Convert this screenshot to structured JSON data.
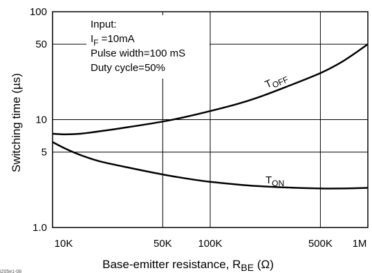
{
  "chart_data": {
    "type": "line",
    "x_scale": "log",
    "y_scale": "log",
    "xlim": [
      10000,
      1000000
    ],
    "ylim": [
      1,
      100
    ],
    "grid": true,
    "xlabel": "Base-emitter resistance, RBE (Ω)",
    "xlabel_parts": {
      "main": "Base-emitter resistance, R",
      "sub": "BE",
      "tail": " (Ω)"
    },
    "ylabel": "Switching time (µs)",
    "x_ticks": [
      {
        "value": 10000,
        "label": "10K"
      },
      {
        "value": 50000,
        "label": "50K"
      },
      {
        "value": 100000,
        "label": "100K"
      },
      {
        "value": 500000,
        "label": "500K"
      },
      {
        "value": 1000000,
        "label": "1M"
      }
    ],
    "y_ticks": [
      {
        "value": 1,
        "label": "1.0"
      },
      {
        "value": 5,
        "label": "5"
      },
      {
        "value": 10,
        "label": "10"
      },
      {
        "value": 50,
        "label": "50"
      },
      {
        "value": 100,
        "label": "100"
      }
    ],
    "annotation": {
      "line1": "Input:",
      "line2_main": "I",
      "line2_sub": "F",
      "line2_tail": " =10mA",
      "line3": "Pulse width=100 mS",
      "line4": "Duty cycle=50%"
    },
    "series": [
      {
        "name": "TOFF",
        "label_main": "T",
        "label_sub": "OFF",
        "x": [
          10000,
          12000,
          15000,
          20000,
          30000,
          50000,
          70000,
          100000,
          150000,
          200000,
          300000,
          500000,
          700000,
          1000000
        ],
        "y": [
          7.4,
          7.3,
          7.4,
          7.8,
          8.5,
          9.6,
          10.6,
          12.0,
          14.0,
          16.0,
          20.0,
          27.0,
          35.0,
          50.0
        ]
      },
      {
        "name": "TON",
        "label_main": "T",
        "label_sub": "ON",
        "x": [
          10000,
          12000,
          15000,
          20000,
          30000,
          50000,
          70000,
          100000,
          150000,
          200000,
          300000,
          500000,
          700000,
          1000000
        ],
        "y": [
          6.2,
          5.4,
          4.7,
          4.1,
          3.6,
          3.1,
          2.85,
          2.65,
          2.5,
          2.42,
          2.35,
          2.3,
          2.3,
          2.33
        ]
      }
    ],
    "figure_id": "i205e1-08"
  }
}
